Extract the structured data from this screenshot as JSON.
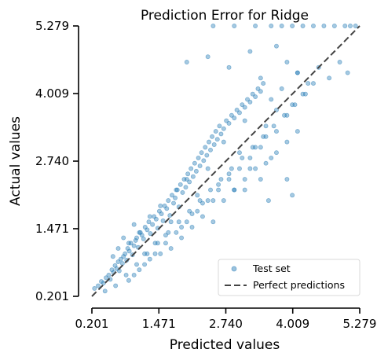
{
  "chart_data": {
    "type": "scatter",
    "title": "Prediction Error for Ridge",
    "xlabel": "Predicted values",
    "ylabel": "Actual values",
    "xlim": [
      0.201,
      5.279
    ],
    "ylim": [
      0.201,
      5.279
    ],
    "xticks": [
      "0.201",
      "1.471",
      "2.740",
      "4.009",
      "5.279"
    ],
    "yticks": [
      "0.201",
      "1.471",
      "2.740",
      "4.009",
      "5.279"
    ],
    "grid": false,
    "legend": {
      "position": "bottom-right",
      "entries": [
        {
          "label": "Test set",
          "kind": "scatter-marker",
          "color": "#1f77b4"
        },
        {
          "label": "Perfect predictions",
          "kind": "dashed-line",
          "color": "#444444"
        }
      ]
    },
    "marker_color": "#1f77b4",
    "marker_alpha": 0.4,
    "identity_line": {
      "from": [
        0.201,
        0.201
      ],
      "to": [
        5.279,
        5.279
      ],
      "style": "dashed",
      "color": "#444444"
    },
    "series": [
      {
        "name": "Test set",
        "x": [
          0.25,
          0.32,
          0.38,
          0.42,
          0.47,
          0.52,
          0.55,
          0.58,
          0.61,
          0.64,
          0.67,
          0.7,
          0.72,
          0.75,
          0.78,
          0.8,
          0.83,
          0.86,
          0.88,
          0.91,
          0.94,
          0.97,
          1.0,
          1.03,
          1.05,
          1.08,
          1.12,
          1.15,
          1.18,
          1.21,
          1.25,
          1.28,
          1.31,
          1.35,
          1.38,
          1.42,
          1.45,
          1.48,
          1.52,
          1.55,
          1.58,
          1.62,
          1.65,
          1.68,
          1.72,
          1.75,
          1.78,
          1.82,
          1.85,
          1.88,
          1.92,
          1.95,
          1.98,
          2.02,
          2.05,
          2.08,
          2.12,
          2.15,
          2.18,
          2.22,
          2.25,
          2.28,
          2.32,
          2.35,
          2.38,
          2.42,
          2.45,
          2.48,
          2.52,
          2.55,
          2.58,
          2.62,
          2.65,
          2.7,
          2.75,
          2.8,
          2.85,
          2.9,
          2.95,
          3.0,
          3.05,
          3.1,
          3.15,
          3.2,
          3.25,
          3.3,
          3.35,
          3.4,
          3.45,
          3.5,
          3.6,
          3.7,
          3.8,
          3.9,
          4.0,
          4.1,
          4.2,
          0.6,
          0.7,
          0.8,
          0.9,
          1.0,
          1.1,
          1.2,
          1.3,
          1.4,
          1.5,
          1.6,
          1.7,
          1.8,
          1.9,
          2.0,
          2.1,
          2.2,
          2.3,
          2.4,
          2.5,
          2.6,
          2.7,
          2.8,
          2.9,
          3.0,
          3.1,
          3.2,
          3.3,
          3.4,
          3.5,
          3.6,
          3.7,
          0.9,
          1.1,
          1.3,
          1.5,
          1.7,
          1.9,
          2.1,
          2.3,
          2.5,
          2.7,
          2.9,
          3.1,
          3.3,
          3.5,
          3.7,
          3.9,
          4.1,
          1.0,
          1.2,
          1.4,
          1.6,
          1.8,
          2.0,
          2.2,
          2.4,
          2.6,
          2.8,
          3.0,
          3.2,
          3.4,
          0.45,
          0.65,
          0.85,
          1.05,
          1.25,
          1.45,
          1.65,
          1.85,
          2.05,
          2.25,
          2.45,
          2.65,
          2.85,
          3.05,
          3.25,
          3.45,
          3.65,
          3.85,
          4.05,
          4.25,
          4.4,
          2.5,
          2.9,
          3.3,
          3.6,
          3.8,
          4.0,
          4.2,
          4.4,
          4.6,
          4.8,
          5.0,
          5.1,
          5.2,
          2.0,
          2.4,
          2.8,
          3.2,
          3.4,
          3.7,
          3.9,
          4.1,
          4.3,
          4.5,
          4.7,
          4.9,
          5.05,
          3.9,
          3.1,
          4.0,
          3.55
        ],
        "y": [
          0.35,
          0.4,
          0.48,
          0.45,
          0.55,
          0.6,
          0.52,
          0.7,
          0.65,
          0.78,
          0.72,
          0.85,
          0.68,
          0.9,
          0.82,
          0.95,
          1.0,
          0.88,
          1.1,
          1.05,
          1.2,
          0.98,
          1.15,
          1.25,
          1.3,
          1.12,
          1.4,
          1.35,
          1.28,
          1.5,
          1.45,
          1.6,
          1.38,
          1.55,
          1.7,
          1.65,
          1.48,
          1.8,
          1.75,
          1.62,
          1.9,
          1.85,
          2.0,
          1.72,
          2.1,
          1.95,
          2.05,
          2.2,
          1.88,
          2.3,
          2.15,
          2.4,
          2.25,
          2.5,
          2.35,
          2.6,
          2.45,
          2.7,
          2.55,
          2.8,
          2.65,
          2.9,
          2.75,
          3.0,
          2.85,
          3.1,
          2.95,
          3.2,
          3.05,
          3.3,
          3.15,
          3.4,
          3.25,
          3.35,
          3.5,
          3.45,
          3.6,
          3.55,
          3.7,
          3.65,
          3.8,
          3.75,
          3.9,
          3.85,
          4.0,
          3.95,
          4.1,
          4.05,
          4.2,
          3.4,
          3.9,
          3.7,
          4.1,
          3.6,
          3.8,
          4.4,
          4.0,
          0.95,
          1.1,
          1.3,
          1.2,
          1.55,
          1.4,
          1.0,
          1.7,
          1.2,
          1.9,
          1.35,
          1.6,
          2.2,
          1.5,
          2.4,
          1.75,
          2.1,
          1.95,
          2.6,
          2.0,
          2.3,
          3.1,
          2.5,
          2.2,
          2.9,
          3.5,
          2.6,
          3.0,
          2.4,
          3.2,
          2.8,
          3.3,
          0.5,
          0.7,
          0.9,
          1.0,
          1.1,
          1.3,
          1.5,
          1.7,
          1.6,
          2.0,
          2.2,
          2.4,
          2.6,
          2.7,
          2.9,
          3.1,
          3.3,
          0.6,
          0.8,
          1.0,
          1.2,
          1.4,
          1.6,
          1.8,
          2.0,
          2.2,
          2.4,
          2.6,
          2.8,
          3.0,
          0.3,
          0.4,
          0.6,
          0.8,
          1.0,
          1.2,
          1.4,
          1.6,
          1.8,
          2.0,
          2.2,
          2.4,
          2.6,
          2.8,
          3.0,
          3.2,
          3.4,
          3.6,
          3.8,
          4.0,
          4.2,
          5.279,
          5.279,
          5.279,
          5.279,
          5.279,
          5.279,
          5.279,
          5.279,
          5.279,
          5.279,
          5.279,
          5.279,
          5.279,
          4.6,
          4.7,
          4.5,
          4.8,
          4.3,
          4.9,
          4.6,
          4.4,
          4.2,
          4.5,
          4.3,
          4.6,
          4.4,
          2.4,
          2.2,
          2.1,
          2.0
        ]
      }
    ]
  }
}
